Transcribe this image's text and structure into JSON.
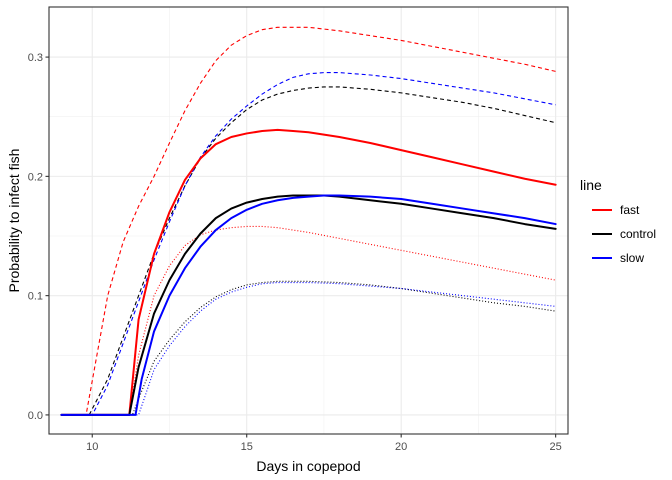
{
  "chart_data": {
    "type": "line",
    "xlabel": "Days in copepod",
    "ylabel": "Probability to infect fish",
    "xlim": [
      8.6,
      25.4
    ],
    "ylim": [
      -0.016,
      0.342
    ],
    "x_ticks": [
      10,
      15,
      20,
      25
    ],
    "y_ticks": [
      0.0,
      0.1,
      0.2,
      0.3
    ],
    "x_tick_labels": [
      "10",
      "15",
      "20",
      "25"
    ],
    "y_tick_labels": [
      "0.0",
      "0.1",
      "0.2",
      "0.3"
    ],
    "grid": true,
    "legend": {
      "title": "line",
      "position": "right",
      "entries": [
        "fast",
        "control",
        "slow"
      ]
    },
    "colors": {
      "fast": "#ff0000",
      "control": "#000000",
      "slow": "#0000ff"
    },
    "series": [
      {
        "name": "fast",
        "style": "solid",
        "x": [
          9,
          11.2,
          11.5,
          12,
          12.5,
          13,
          13.5,
          14,
          14.5,
          15,
          15.5,
          16,
          16.5,
          17,
          18,
          19,
          20,
          21,
          22,
          23,
          24,
          25
        ],
        "y": [
          0,
          0,
          0.08,
          0.135,
          0.17,
          0.197,
          0.215,
          0.227,
          0.233,
          0.236,
          0.238,
          0.239,
          0.238,
          0.237,
          0.233,
          0.228,
          0.222,
          0.216,
          0.21,
          0.204,
          0.198,
          0.193
        ]
      },
      {
        "name": "fast upper",
        "style": "dashed",
        "x": [
          9,
          9.8,
          10.5,
          11,
          11.5,
          12,
          12.5,
          13,
          13.5,
          14,
          14.5,
          15,
          15.5,
          16,
          16.5,
          17,
          18,
          19,
          20,
          21,
          22,
          23,
          24,
          25
        ],
        "y": [
          0,
          0,
          0.1,
          0.145,
          0.175,
          0.2,
          0.228,
          0.255,
          0.278,
          0.297,
          0.31,
          0.318,
          0.323,
          0.325,
          0.325,
          0.325,
          0.322,
          0.318,
          0.314,
          0.309,
          0.304,
          0.299,
          0.294,
          0.288
        ]
      },
      {
        "name": "fast lower",
        "style": "dotted",
        "x": [
          9,
          11.2,
          11.5,
          12,
          12.5,
          13,
          13.5,
          14,
          14.5,
          15,
          15.5,
          16,
          16.5,
          17,
          18,
          19,
          20,
          21,
          22,
          23,
          24,
          25
        ],
        "y": [
          0,
          0,
          0.05,
          0.1,
          0.125,
          0.142,
          0.151,
          0.155,
          0.157,
          0.158,
          0.158,
          0.157,
          0.155,
          0.153,
          0.148,
          0.143,
          0.138,
          0.133,
          0.128,
          0.123,
          0.118,
          0.113
        ]
      },
      {
        "name": "control",
        "style": "solid",
        "x": [
          9,
          11.2,
          11.5,
          12,
          12.5,
          13,
          13.5,
          14,
          14.5,
          15,
          15.5,
          16,
          16.5,
          17,
          17.5,
          18,
          19,
          20,
          21,
          22,
          23,
          24,
          25
        ],
        "y": [
          0,
          0,
          0.04,
          0.085,
          0.113,
          0.135,
          0.152,
          0.165,
          0.173,
          0.178,
          0.181,
          0.183,
          0.184,
          0.184,
          0.184,
          0.183,
          0.18,
          0.177,
          0.173,
          0.169,
          0.165,
          0.16,
          0.156
        ]
      },
      {
        "name": "control upper",
        "style": "dashed",
        "x": [
          9,
          9.9,
          10.5,
          11,
          11.5,
          12,
          12.5,
          13,
          13.5,
          14,
          14.5,
          15,
          15.5,
          16,
          16.5,
          17,
          17.5,
          18,
          19,
          20,
          21,
          22,
          23,
          24,
          25
        ],
        "y": [
          0,
          0,
          0.03,
          0.065,
          0.1,
          0.135,
          0.165,
          0.192,
          0.215,
          0.232,
          0.245,
          0.256,
          0.264,
          0.269,
          0.272,
          0.274,
          0.275,
          0.275,
          0.273,
          0.27,
          0.266,
          0.262,
          0.257,
          0.251,
          0.245
        ]
      },
      {
        "name": "control lower",
        "style": "dotted",
        "x": [
          9,
          11.3,
          11.6,
          12,
          12.5,
          13,
          13.5,
          14,
          14.5,
          15,
          15.5,
          16,
          16.5,
          17,
          18,
          19,
          20,
          21,
          22,
          23,
          24,
          25
        ],
        "y": [
          0,
          0,
          0.02,
          0.045,
          0.063,
          0.078,
          0.09,
          0.099,
          0.105,
          0.109,
          0.111,
          0.112,
          0.112,
          0.112,
          0.111,
          0.109,
          0.106,
          0.102,
          0.098,
          0.094,
          0.091,
          0.087
        ]
      },
      {
        "name": "slow",
        "style": "solid",
        "x": [
          9,
          11.4,
          11.6,
          12,
          12.5,
          13,
          13.5,
          14,
          14.5,
          15,
          15.5,
          16,
          16.5,
          17,
          17.5,
          18,
          19,
          20,
          21,
          22,
          23,
          24,
          25
        ],
        "y": [
          0,
          0,
          0.03,
          0.07,
          0.1,
          0.123,
          0.141,
          0.155,
          0.165,
          0.172,
          0.177,
          0.18,
          0.182,
          0.183,
          0.184,
          0.184,
          0.183,
          0.181,
          0.177,
          0.173,
          0.169,
          0.165,
          0.16
        ]
      },
      {
        "name": "slow upper",
        "style": "dashed",
        "x": [
          9,
          10,
          10.5,
          11,
          11.5,
          12,
          12.5,
          13,
          13.5,
          14,
          14.5,
          15,
          15.5,
          16,
          16.5,
          17,
          17.5,
          18,
          19,
          20,
          21,
          22,
          23,
          24,
          25
        ],
        "y": [
          0,
          0,
          0.025,
          0.06,
          0.095,
          0.13,
          0.162,
          0.192,
          0.216,
          0.234,
          0.248,
          0.259,
          0.269,
          0.277,
          0.283,
          0.286,
          0.287,
          0.287,
          0.285,
          0.282,
          0.278,
          0.274,
          0.27,
          0.265,
          0.26
        ]
      },
      {
        "name": "slow lower",
        "style": "dotted",
        "x": [
          9,
          11.5,
          11.7,
          12,
          12.5,
          13,
          13.5,
          14,
          14.5,
          15,
          15.5,
          16,
          16.5,
          17,
          18,
          19,
          20,
          21,
          22,
          23,
          24,
          25
        ],
        "y": [
          0,
          0,
          0.015,
          0.038,
          0.058,
          0.074,
          0.087,
          0.097,
          0.103,
          0.107,
          0.11,
          0.111,
          0.111,
          0.111,
          0.11,
          0.108,
          0.106,
          0.103,
          0.1,
          0.097,
          0.094,
          0.091
        ]
      }
    ]
  }
}
